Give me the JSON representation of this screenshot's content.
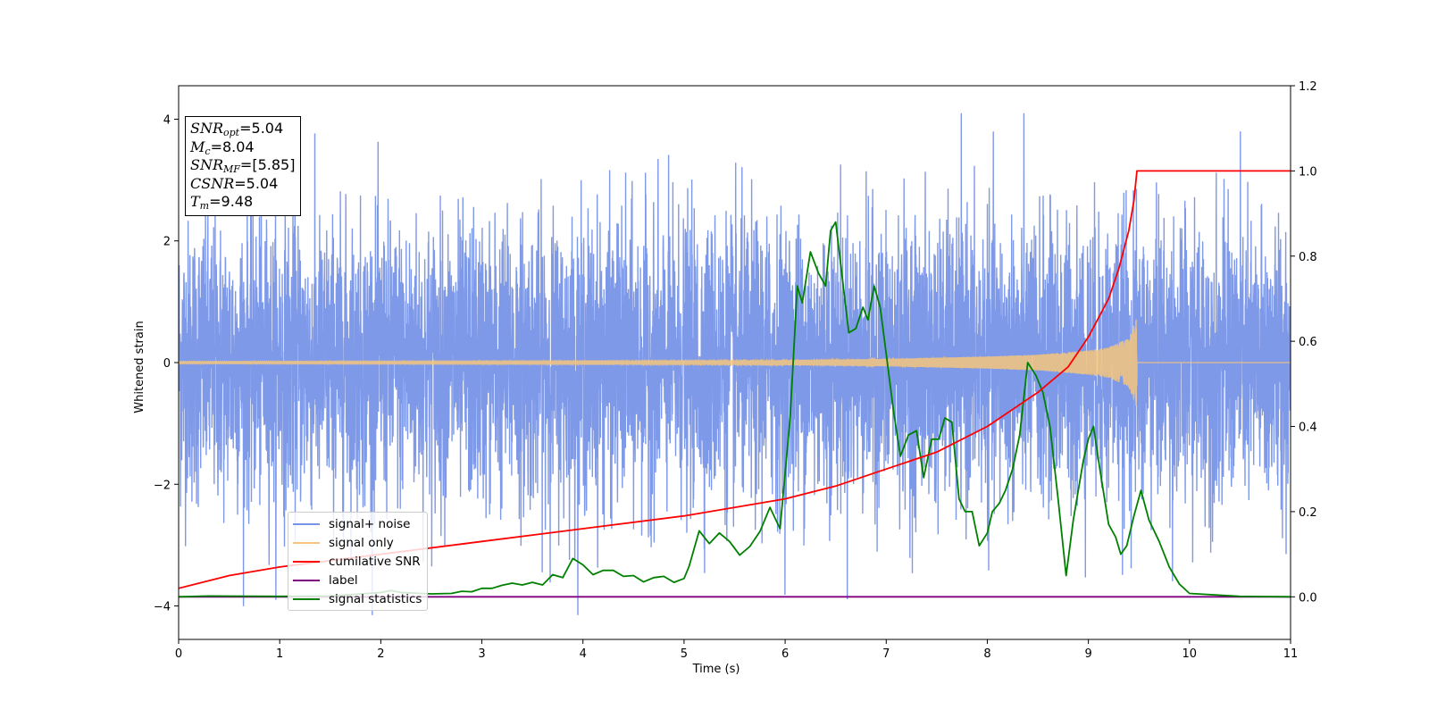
{
  "chart_data": {
    "type": "line",
    "xlabel": "Time (s)",
    "ylabel": "Whitened strain",
    "xlim": [
      0,
      11
    ],
    "ylim_left": [
      -4.55,
      4.55
    ],
    "ylim_right": [
      -0.1,
      1.2
    ],
    "x_ticks": [
      "0",
      "1",
      "2",
      "3",
      "4",
      "5",
      "6",
      "7",
      "8",
      "9",
      "10",
      "11"
    ],
    "y_ticks_left": [
      "4",
      "2",
      "0",
      "−2",
      "−4"
    ],
    "y_ticks_right": [
      "1.2",
      "1.0",
      "0.8",
      "0.6",
      "0.4",
      "0.2",
      "0.0"
    ],
    "grid": false,
    "legend_placement": "lower-left",
    "series": [
      {
        "name": "signal+ noise",
        "color": "#7894e8",
        "axis": "left",
        "description_points": {
          "approx_amplitude_envelope": 3.4,
          "peak_max": 4.1,
          "peak_min": -4.15
        }
      },
      {
        "name": "signal only",
        "color": "#f5c57d",
        "axis": "left",
        "x": [
          0,
          5,
          6,
          7,
          8,
          8.5,
          9,
          9.2,
          9.4,
          9.48,
          9.49,
          11
        ],
        "envelope": [
          0.02,
          0.03,
          0.04,
          0.06,
          0.1,
          0.13,
          0.2,
          0.25,
          0.4,
          0.75,
          0.0,
          0.0
        ]
      },
      {
        "name": "cumilative SNR",
        "color": "#ff0000",
        "axis": "right",
        "x": [
          0,
          0.5,
          1,
          2,
          3,
          4,
          5,
          6,
          6.5,
          7,
          7.5,
          8,
          8.5,
          8.8,
          9,
          9.2,
          9.3,
          9.4,
          9.45,
          9.48,
          11
        ],
        "y": [
          0.02,
          0.05,
          0.07,
          0.1,
          0.13,
          0.16,
          0.19,
          0.23,
          0.26,
          0.3,
          0.34,
          0.4,
          0.48,
          0.54,
          0.61,
          0.7,
          0.77,
          0.86,
          0.93,
          1.0,
          1.0
        ]
      },
      {
        "name": "label",
        "color": "#800080",
        "axis": "right",
        "x": [
          0,
          11
        ],
        "y": [
          0.0,
          0.0
        ]
      },
      {
        "name": "signal statistics",
        "color": "#008000",
        "axis": "right",
        "x": [
          0,
          0.3,
          1,
          1.5,
          2,
          2.1,
          2.2,
          2.5,
          2.7,
          2.8,
          2.9,
          3.0,
          3.1,
          3.2,
          3.3,
          3.4,
          3.5,
          3.6,
          3.7,
          3.8,
          3.9,
          4.0,
          4.1,
          4.2,
          4.3,
          4.4,
          4.5,
          4.6,
          4.7,
          4.8,
          4.9,
          5.0,
          5.05,
          5.15,
          5.25,
          5.35,
          5.45,
          5.55,
          5.65,
          5.75,
          5.85,
          5.95,
          6.05,
          6.12,
          6.17,
          6.25,
          6.33,
          6.4,
          6.45,
          6.5,
          6.57,
          6.63,
          6.7,
          6.77,
          6.82,
          6.88,
          6.94,
          7.0,
          7.07,
          7.14,
          7.22,
          7.3,
          7.37,
          7.45,
          7.52,
          7.58,
          7.65,
          7.72,
          7.78,
          7.85,
          7.92,
          8.0,
          8.05,
          8.12,
          8.18,
          8.25,
          8.32,
          8.4,
          8.48,
          8.55,
          8.62,
          8.7,
          8.78,
          8.85,
          8.9,
          8.95,
          9.0,
          9.05,
          9.12,
          9.2,
          9.27,
          9.32,
          9.38,
          9.45,
          9.52,
          9.6,
          9.7,
          9.8,
          9.9,
          10.0,
          10.5,
          11
        ],
        "y": [
          0.0,
          0.002,
          0.001,
          0.002,
          0.01,
          0.015,
          0.01,
          0.007,
          0.008,
          0.013,
          0.012,
          0.02,
          0.02,
          0.027,
          0.032,
          0.028,
          0.034,
          0.028,
          0.052,
          0.045,
          0.09,
          0.075,
          0.052,
          0.062,
          0.062,
          0.048,
          0.05,
          0.035,
          0.045,
          0.048,
          0.034,
          0.043,
          0.072,
          0.155,
          0.125,
          0.15,
          0.13,
          0.098,
          0.118,
          0.153,
          0.21,
          0.16,
          0.42,
          0.73,
          0.69,
          0.81,
          0.76,
          0.73,
          0.86,
          0.88,
          0.74,
          0.62,
          0.63,
          0.68,
          0.65,
          0.73,
          0.68,
          0.57,
          0.44,
          0.33,
          0.38,
          0.39,
          0.28,
          0.37,
          0.37,
          0.42,
          0.41,
          0.23,
          0.2,
          0.2,
          0.12,
          0.15,
          0.2,
          0.22,
          0.25,
          0.3,
          0.38,
          0.55,
          0.52,
          0.48,
          0.4,
          0.23,
          0.05,
          0.18,
          0.25,
          0.32,
          0.37,
          0.4,
          0.29,
          0.17,
          0.14,
          0.1,
          0.12,
          0.19,
          0.25,
          0.18,
          0.13,
          0.07,
          0.03,
          0.008,
          0.001,
          0.0
        ]
      }
    ]
  },
  "infobox": {
    "snr_opt_label": "SNR",
    "snr_opt_sub": "opt",
    "snr_opt_value": "=5.04",
    "mc_label": "M",
    "mc_sub": "c",
    "mc_value": "=8.04",
    "snr_mf_label": "SNR",
    "snr_mf_sub": "MF",
    "snr_mf_value": "=[5.85]",
    "csnr_label": "CSNR",
    "csnr_value": "=5.04",
    "tm_label": "T",
    "tm_sub": "m",
    "tm_value": "=9.48"
  },
  "legend": [
    {
      "label": "signal+ noise",
      "color": "#7894e8"
    },
    {
      "label": "signal only",
      "color": "#f5c57d"
    },
    {
      "label": "cumilative SNR",
      "color": "#ff0000"
    },
    {
      "label": "label",
      "color": "#800080"
    },
    {
      "label": "signal statistics",
      "color": "#008000"
    }
  ]
}
